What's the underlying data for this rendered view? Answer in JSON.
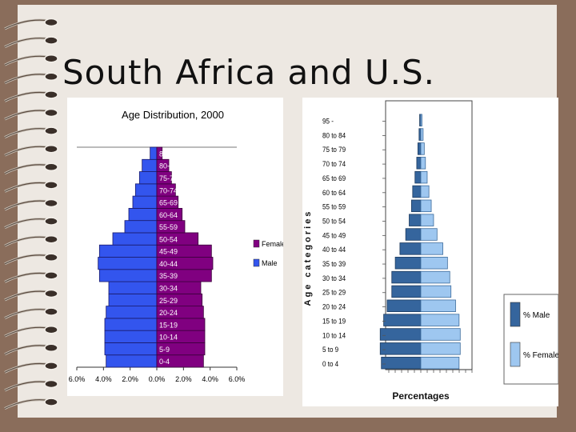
{
  "slide": {
    "title": "South Africa and U.S."
  },
  "chart_data": [
    {
      "type": "bar",
      "title": "Age Distribution, 2000",
      "categories": [
        "0-4",
        "5-9",
        "10-14",
        "15-19",
        "20-24",
        "25-29",
        "30-34",
        "35-39",
        "40-44",
        "45-49",
        "50-54",
        "55-59",
        "60-64",
        "65-69",
        "70-74",
        "75-79",
        "80-84",
        "85+"
      ],
      "series": [
        {
          "name": "Male",
          "color": "#3355ee",
          "values": [
            -3.8,
            -3.9,
            -3.9,
            -3.9,
            -3.8,
            -3.6,
            -3.6,
            -4.3,
            -4.4,
            -4.3,
            -3.3,
            -2.4,
            -2.1,
            -1.8,
            -1.6,
            -1.3,
            -1.1,
            -0.5
          ]
        },
        {
          "name": "Female",
          "color": "#800080",
          "values": [
            3.5,
            3.6,
            3.6,
            3.6,
            3.5,
            3.4,
            3.3,
            4.1,
            4.2,
            4.1,
            3.1,
            2.1,
            1.9,
            1.6,
            1.4,
            1.1,
            0.9,
            0.4
          ]
        }
      ],
      "xlim": [
        -6,
        6
      ],
      "xticks": [
        "6.0%",
        "4.0%",
        "2.0%",
        "0.0%",
        "2.0%",
        "4.0%",
        "6.0%"
      ],
      "legend": [
        "Female",
        "Male"
      ],
      "legend_position": "right",
      "grid": false
    },
    {
      "type": "bar",
      "categories": [
        "0 to 4",
        "5 to 9",
        "10 to 14",
        "15 to 19",
        "20 to 24",
        "25 to 29",
        "30 to 34",
        "35 to 39",
        "40 to 44",
        "45 to 49",
        "50 to 54",
        "55 to 59",
        "60 to 64",
        "65 to 69",
        "70 to 74",
        "75 to 79",
        "80 to 84",
        "95 -"
      ],
      "series": [
        {
          "name": "% Male",
          "color": "#35659d",
          "values": [
            -3.4,
            -3.5,
            -3.5,
            -3.2,
            -2.9,
            -2.5,
            -2.5,
            -2.2,
            -1.8,
            -1.3,
            -1.0,
            -0.8,
            -0.7,
            -0.5,
            -0.35,
            -0.25,
            -0.15,
            -0.1
          ]
        },
        {
          "name": "% Female",
          "color": "#9ec7f0",
          "values": [
            3.3,
            3.4,
            3.4,
            3.3,
            3.0,
            2.6,
            2.5,
            2.3,
            1.9,
            1.4,
            1.1,
            0.9,
            0.7,
            0.55,
            0.4,
            0.3,
            0.2,
            0.1
          ]
        }
      ],
      "xlim": [
        -4.5,
        4.5
      ],
      "ylabel": "Age categories",
      "xlabel": "Percentages",
      "legend_position": "right",
      "grid": false
    }
  ]
}
